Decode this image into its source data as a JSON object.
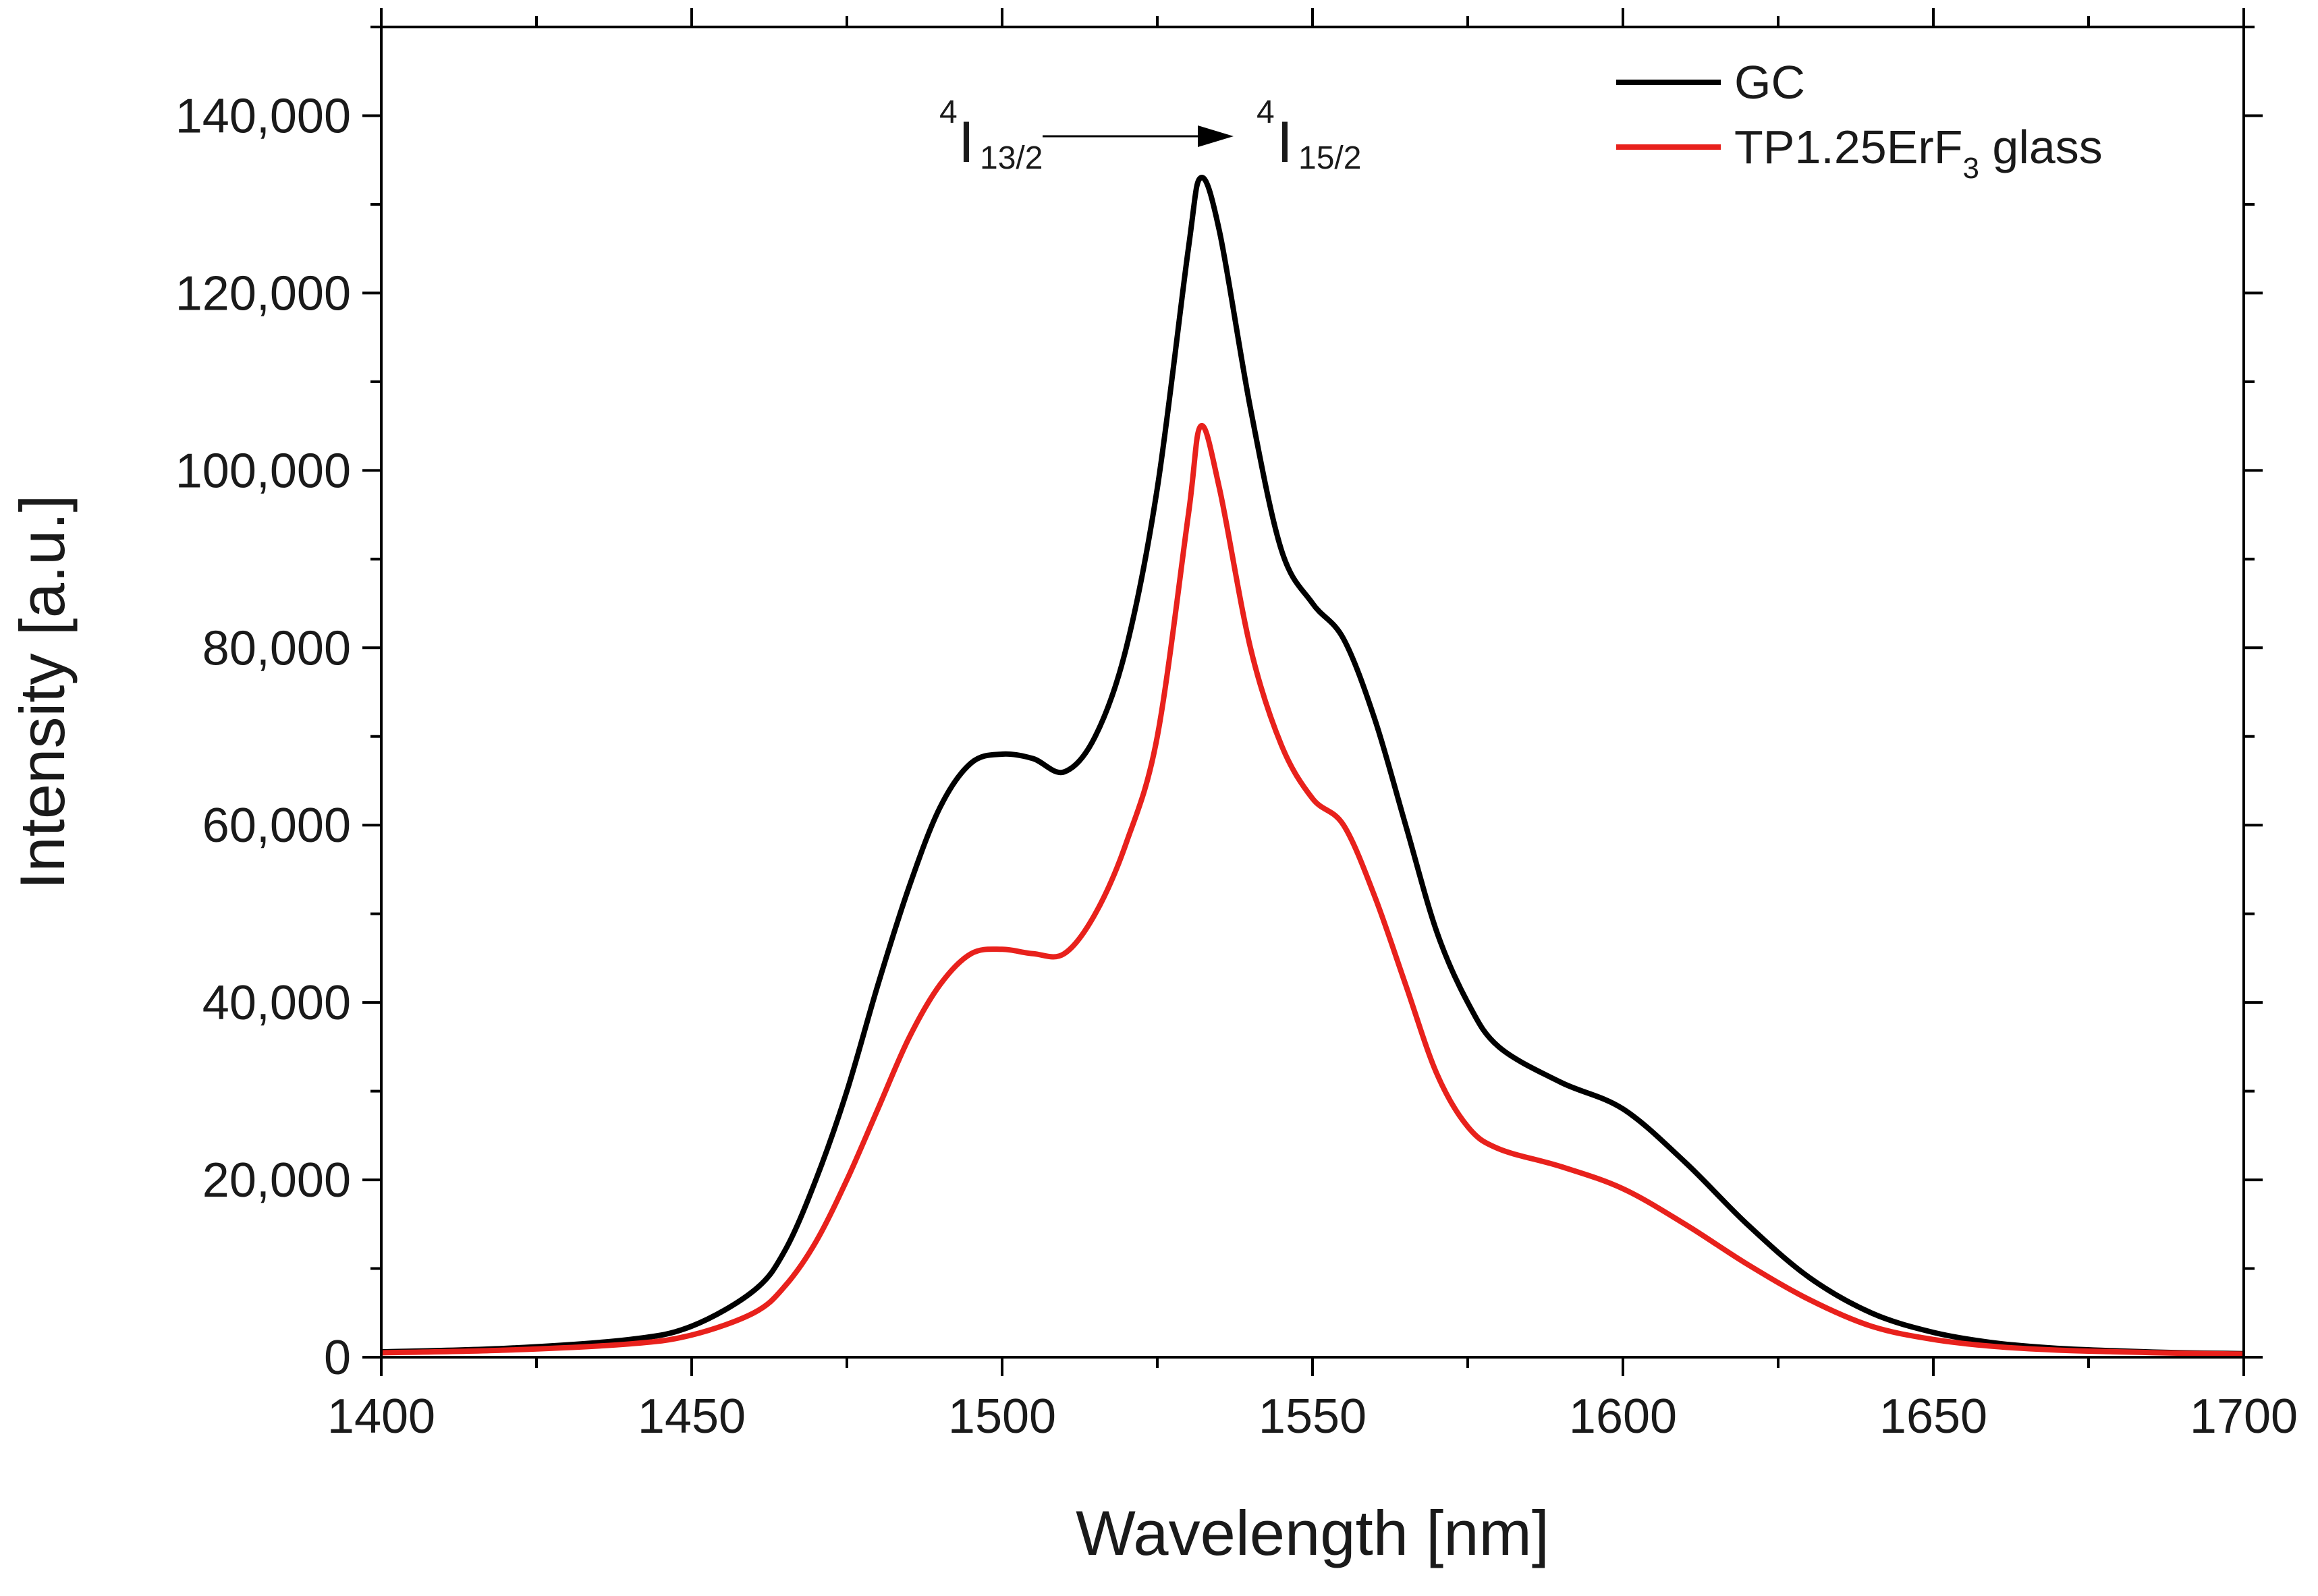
{
  "chart_data": {
    "type": "line",
    "title": "",
    "xlabel": "Wavelength [nm]",
    "ylabel": "Intensity [a.u.]",
    "xlim": [
      1400,
      1700
    ],
    "ylim": [
      0,
      150000
    ],
    "x_ticks": [
      1400,
      1450,
      1500,
      1550,
      1600,
      1650,
      1700
    ],
    "x_tick_labels": [
      "1400",
      "1450",
      "1500",
      "1550",
      "1600",
      "1650",
      "1700"
    ],
    "y_ticks": [
      0,
      20000,
      40000,
      60000,
      80000,
      100000,
      120000,
      140000
    ],
    "y_tick_labels": [
      "0",
      "20,000",
      "40,000",
      "60,000",
      "80,000",
      "100,000",
      "120,000",
      "140,000"
    ],
    "grid": false,
    "legend_position": "top-right",
    "annotation": {
      "from_sup": "4",
      "from_main": "I",
      "from_sub": "13/2",
      "to_sup": "4",
      "to_main": "I",
      "to_sub": "15/2"
    },
    "x": [
      1400,
      1420,
      1440,
      1450,
      1460,
      1465,
      1470,
      1475,
      1480,
      1485,
      1490,
      1495,
      1500,
      1505,
      1510,
      1515,
      1520,
      1525,
      1530,
      1532,
      1535,
      1540,
      1545,
      1550,
      1555,
      1560,
      1565,
      1570,
      1575,
      1580,
      1590,
      1600,
      1610,
      1620,
      1630,
      1640,
      1650,
      1660,
      1670,
      1680,
      1690,
      1700
    ],
    "series": [
      {
        "name": "GC",
        "color": "#000000",
        "values": [
          600,
          1000,
          2000,
          3500,
          7500,
          12000,
          20000,
          30000,
          42000,
          53000,
          62000,
          67000,
          68000,
          67500,
          66000,
          70000,
          80000,
          98000,
          125000,
          133000,
          127000,
          107000,
          91000,
          85000,
          81000,
          72000,
          60000,
          48000,
          40000,
          35000,
          31000,
          28000,
          22000,
          15000,
          9000,
          5000,
          2800,
          1600,
          1000,
          700,
          500,
          400
        ]
      },
      {
        "name": "TP1.25ErF",
        "name_sub": "3",
        "name_suffix": " glass",
        "color": "#e8211c",
        "values": [
          500,
          800,
          1500,
          2500,
          5000,
          8000,
          13000,
          20000,
          28000,
          36000,
          42000,
          45500,
          46000,
          45500,
          45500,
          50000,
          58000,
          70000,
          95000,
          105000,
          98000,
          80000,
          69000,
          63000,
          60000,
          52000,
          42000,
          32000,
          26000,
          23500,
          21500,
          19000,
          15000,
          10500,
          6500,
          3500,
          2000,
          1200,
          800,
          600,
          450,
          350
        ]
      }
    ]
  }
}
